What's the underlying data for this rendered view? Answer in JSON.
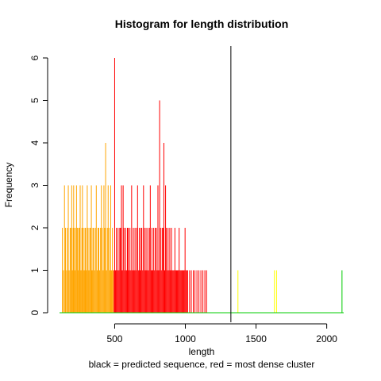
{
  "chart_data": {
    "type": "bar",
    "title": "Histogram for length distribution",
    "xlabel": "length",
    "subtitle": "black = predicted sequence, red = most dense cluster",
    "ylabel": "Frequency",
    "xlim": [
      110,
      2120
    ],
    "ylim": [
      0,
      6
    ],
    "x_ticks": [
      500,
      1000,
      1500,
      2000
    ],
    "y_ticks": [
      0,
      1,
      2,
      3,
      4,
      5,
      6
    ],
    "predicted_sequence_x": 1322,
    "colors": {
      "orange": "#ffa500",
      "red": "#ff0000",
      "yellow": "#ffff00",
      "green": "#00cc00",
      "marker": "#000000"
    },
    "series": [
      {
        "color": "orange",
        "x": [
          130,
          138,
          145,
          152,
          160,
          165,
          172,
          178,
          185,
          190,
          196,
          200,
          206,
          210,
          215,
          220,
          226,
          230,
          236,
          240,
          246,
          250,
          256,
          262,
          268,
          272,
          278,
          284,
          290,
          295,
          300,
          306,
          312,
          318,
          324,
          330,
          335,
          340,
          346,
          352,
          358,
          364,
          370,
          376,
          382,
          388,
          394,
          400,
          406,
          412,
          418,
          424,
          430,
          436,
          442,
          448,
          454,
          460,
          466,
          472,
          478,
          484,
          490
        ],
        "values": [
          2,
          1,
          3,
          2,
          1,
          2,
          3,
          1,
          2,
          2,
          3,
          1,
          2,
          3,
          2,
          1,
          2,
          3,
          2,
          1,
          2,
          2,
          3,
          1,
          2,
          3,
          2,
          1,
          2,
          2,
          1,
          3,
          2,
          1,
          2,
          2,
          3,
          1,
          2,
          2,
          1,
          2,
          3,
          1,
          2,
          2,
          1,
          2,
          3,
          2,
          1,
          3,
          2,
          4,
          1,
          2,
          3,
          2,
          1,
          3,
          1,
          2,
          1
        ]
      },
      {
        "color": "red",
        "x": [
          496,
          500,
          506,
          512,
          518,
          524,
          530,
          536,
          542,
          548,
          554,
          560,
          566,
          572,
          578,
          584,
          590,
          596,
          602,
          608,
          614,
          620,
          626,
          632,
          638,
          644,
          650,
          656,
          662,
          668,
          674,
          680,
          686,
          692,
          698,
          704,
          710,
          716,
          722,
          728,
          734,
          740,
          746,
          752,
          758,
          764,
          770,
          776,
          782,
          788,
          794,
          800,
          806,
          812,
          818,
          824,
          830,
          836,
          842,
          848,
          854,
          860,
          866,
          872,
          878,
          884,
          890,
          896,
          902,
          908,
          914,
          920,
          926,
          932,
          938,
          944,
          950,
          956,
          962,
          968,
          974,
          980,
          986,
          992,
          998,
          1004,
          1010,
          1016,
          1030,
          1042,
          1056,
          1068,
          1082,
          1096,
          1110,
          1124,
          1138,
          1150
        ],
        "values": [
          1,
          6,
          1,
          2,
          1,
          2,
          1,
          2,
          2,
          3,
          1,
          3,
          2,
          1,
          2,
          1,
          2,
          2,
          1,
          2,
          1,
          3,
          1,
          2,
          1,
          2,
          1,
          2,
          3,
          1,
          2,
          1,
          2,
          2,
          1,
          3,
          2,
          1,
          2,
          1,
          2,
          1,
          2,
          3,
          1,
          2,
          1,
          2,
          1,
          2,
          2,
          1,
          3,
          1,
          5,
          2,
          1,
          2,
          2,
          4,
          1,
          3,
          2,
          1,
          2,
          1,
          2,
          1,
          2,
          1,
          1,
          1,
          2,
          1,
          1,
          1,
          1,
          2,
          1,
          1,
          1,
          1,
          1,
          1,
          2,
          1,
          1,
          1,
          1,
          1,
          1,
          1,
          1,
          1,
          1,
          1,
          1,
          1
        ]
      },
      {
        "color": "yellow",
        "x": [
          1372,
          1630,
          1645
        ],
        "values": [
          1,
          1,
          1
        ]
      },
      {
        "color": "green",
        "x": [
          2108
        ],
        "values": [
          1
        ]
      }
    ]
  }
}
